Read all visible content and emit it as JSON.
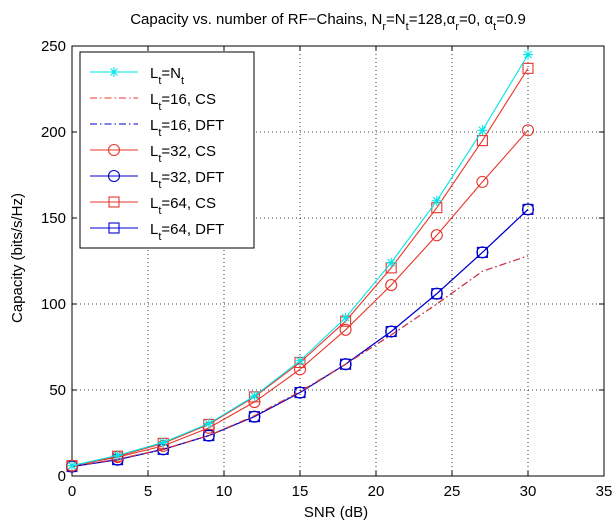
{
  "chart_data": {
    "type": "line",
    "title": {
      "prefix": "Capacity vs. number of RF−Chains, N",
      "parts": [
        {
          "t": "r",
          "sub": true
        },
        {
          "t": "=N",
          "sub": false
        },
        {
          "t": "t",
          "sub": true
        },
        {
          "t": "=128,",
          "sub": false
        },
        {
          "t": "α",
          "sub": false
        },
        {
          "t": "r",
          "sub": true
        },
        {
          "t": "=0, ",
          "sub": false
        },
        {
          "t": "α",
          "sub": false
        },
        {
          "t": "t",
          "sub": true
        },
        {
          "t": "=0.9",
          "sub": false
        }
      ]
    },
    "xlabel": "SNR (dB)",
    "ylabel": "Capacity (bits/s/Hz)",
    "xlim": [
      0,
      35
    ],
    "ylim": [
      0,
      250
    ],
    "xticks": [
      0,
      5,
      10,
      15,
      20,
      25,
      30,
      35
    ],
    "yticks": [
      0,
      50,
      100,
      150,
      200,
      250
    ],
    "grid": true,
    "legend_position": "top-left",
    "x": [
      0,
      3,
      6,
      9,
      12,
      15,
      18,
      21,
      24,
      27,
      30
    ],
    "series": [
      {
        "name": "L",
        "sub": "t",
        "suffix": "=N",
        "suffix_sub": "t",
        "color": "#00e5e5",
        "dash": "solid",
        "marker": "star",
        "values": [
          6,
          12,
          19.5,
          30.5,
          46.5,
          67,
          92,
          124,
          160,
          201,
          245
        ]
      },
      {
        "name": "L",
        "sub": "t",
        "suffix": "=16, CS",
        "suffix_sub": "",
        "color": "#e8352b",
        "dash": "dashdot",
        "marker": "none",
        "values": [
          5.5,
          9.8,
          15.5,
          23.5,
          35,
          49,
          65,
          82,
          100,
          119,
          128
        ]
      },
      {
        "name": "L",
        "sub": "t",
        "suffix": "=16, DFT",
        "suffix_sub": "",
        "color": "#0000cc",
        "dash": "dashdot",
        "marker": "none",
        "values": [
          5.5,
          9.8,
          15.5,
          23.5,
          35,
          49,
          65,
          82,
          100,
          119,
          128
        ]
      },
      {
        "name": "L",
        "sub": "t",
        "suffix": "=32, CS",
        "suffix_sub": "",
        "color": "#e8352b",
        "dash": "solid",
        "marker": "circle",
        "values": [
          6,
          11,
          17.5,
          28,
          43,
          62,
          85,
          111,
          140,
          171,
          201
        ]
      },
      {
        "name": "L",
        "sub": "t",
        "suffix": "=32, DFT",
        "suffix_sub": "",
        "color": "#0000cc",
        "dash": "solid",
        "marker": "circle",
        "values": [
          5.5,
          9.5,
          15.5,
          23.5,
          34.5,
          48.5,
          65,
          84,
          106,
          130,
          155
        ]
      },
      {
        "name": "L",
        "sub": "t",
        "suffix": "=64, CS",
        "suffix_sub": "",
        "color": "#e8352b",
        "dash": "solid",
        "marker": "square",
        "values": [
          6,
          11.5,
          19,
          30,
          46,
          66,
          90,
          121,
          156,
          195,
          237
        ]
      },
      {
        "name": "L",
        "sub": "t",
        "suffix": "=64, DFT",
        "suffix_sub": "",
        "color": "#0000cc",
        "dash": "solid",
        "marker": "square",
        "values": [
          5.5,
          9.5,
          15.5,
          23.5,
          34.5,
          48.5,
          65,
          84,
          106,
          130,
          155
        ]
      }
    ]
  }
}
